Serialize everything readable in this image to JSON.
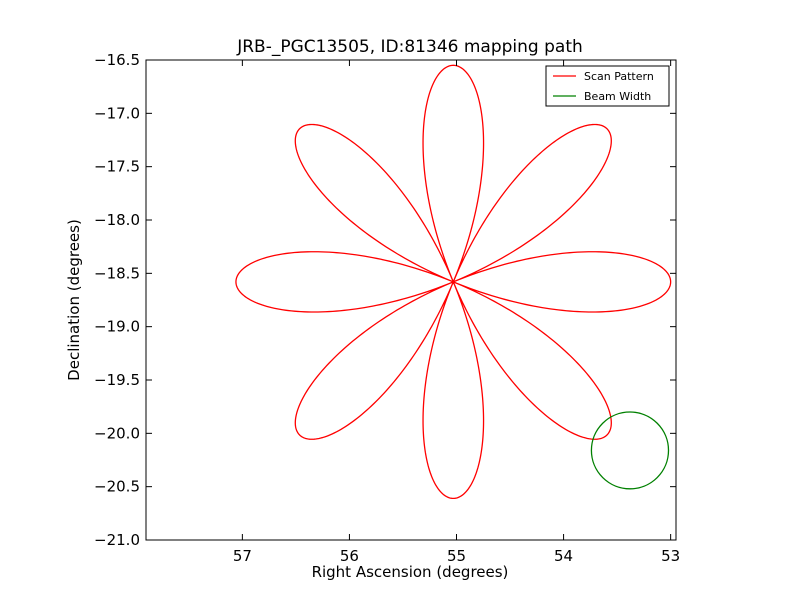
{
  "chart_data": {
    "type": "line",
    "title": "JRB-_PGC13505, ID:81346 mapping path",
    "xlabel": "Right Ascension (degrees)",
    "ylabel": "Declination (degrees)",
    "xlim": [
      57.9,
      52.95
    ],
    "ylim": [
      -21.0,
      -16.5
    ],
    "xticks": [
      57,
      56,
      55,
      54,
      53
    ],
    "xtick_labels": [
      "57",
      "56",
      "55",
      "54",
      "53"
    ],
    "yticks": [
      -16.5,
      -17.0,
      -17.5,
      -18.0,
      -18.5,
      -19.0,
      -19.5,
      -20.0,
      -20.5,
      -21.0
    ],
    "ytick_labels": [
      "−16.5",
      "−17.0",
      "−17.5",
      "−18.0",
      "−18.5",
      "−19.0",
      "−19.5",
      "−20.0",
      "−20.5",
      "−21.0"
    ],
    "grid": false,
    "legend_position": "top-right",
    "series": [
      {
        "name": "Scan Pattern",
        "color": "#ff0000",
        "shape": "rose",
        "petals": 8,
        "center": [
          55.03,
          -18.58
        ],
        "radius_deg": 2.03,
        "start_angle_deg": 0
      },
      {
        "name": "Beam Width",
        "color": "#008000",
        "shape": "circle",
        "center": [
          53.38,
          -20.16
        ],
        "radius_deg": 0.36
      }
    ]
  }
}
